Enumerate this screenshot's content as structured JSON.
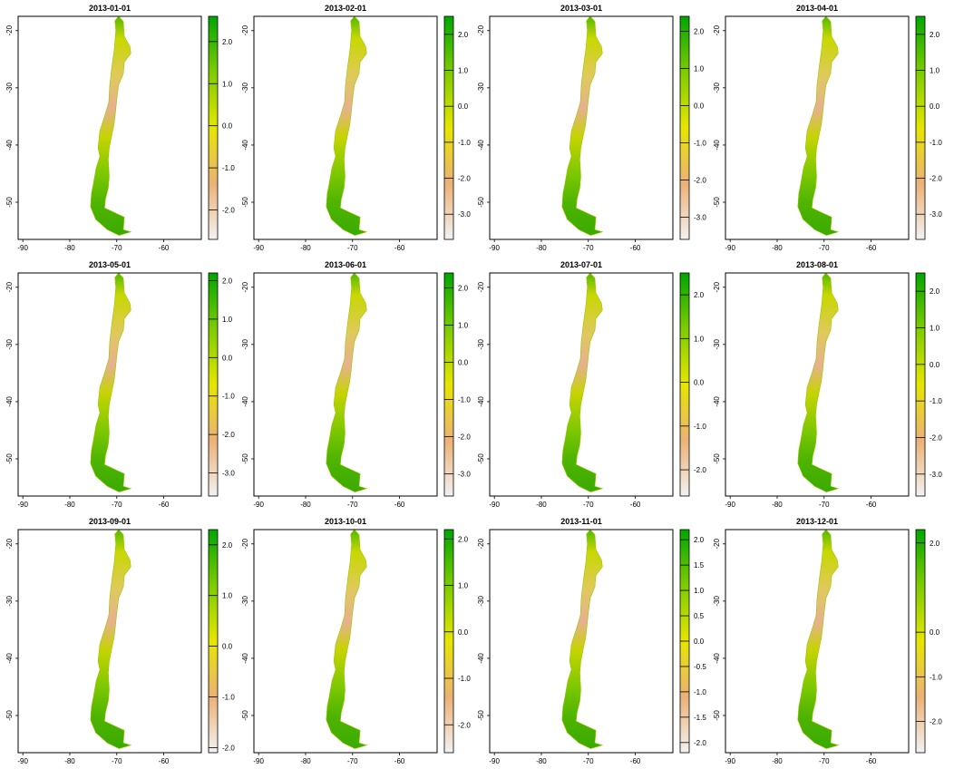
{
  "figure": {
    "layout": "3 rows x 4 columns of raster map panels with colour legends"
  },
  "colors": {
    "ramp": [
      "#f2f2f2",
      "#ecb176",
      "#e6e600",
      "#7dcc00",
      "#00a600"
    ]
  },
  "chart_data": [
    {
      "type": "heatmap",
      "title": "2013-01-01",
      "x_ticks": [
        "-90",
        "-80",
        "-70",
        "-60"
      ],
      "y_ticks": [
        "-20",
        "-30",
        "-40",
        "-50"
      ],
      "xlim": [
        -91,
        -52
      ],
      "ylim": [
        -56.5,
        -17.5
      ],
      "legend": {
        "min": -2.7,
        "max": 2.6,
        "ticks": [
          {
            "v": 2.0,
            "label": "2.0"
          },
          {
            "v": 1.0,
            "label": "1.0"
          },
          {
            "v": 0.0,
            "label": "0.0"
          },
          {
            "v": -1.0,
            "label": "-1.0"
          },
          {
            "v": -2.0,
            "label": "-2.0"
          }
        ]
      }
    },
    {
      "type": "heatmap",
      "title": "2013-02-01",
      "x_ticks": [
        "-90",
        "-80",
        "-70",
        "-60"
      ],
      "y_ticks": [
        "-20",
        "-30",
        "-40",
        "-50"
      ],
      "xlim": [
        -91,
        -52
      ],
      "ylim": [
        -56.5,
        -17.5
      ],
      "legend": {
        "min": -3.7,
        "max": 2.5,
        "ticks": [
          {
            "v": 2.0,
            "label": "2.0"
          },
          {
            "v": 1.0,
            "label": "1.0"
          },
          {
            "v": 0.0,
            "label": "0.0"
          },
          {
            "v": -1.0,
            "label": "-1.0"
          },
          {
            "v": -2.0,
            "label": "-2.0"
          },
          {
            "v": -3.0,
            "label": "-3.0"
          }
        ]
      }
    },
    {
      "type": "heatmap",
      "title": "2013-03-01",
      "x_ticks": [
        "-90",
        "-80",
        "-70",
        "-60"
      ],
      "y_ticks": [
        "-20",
        "-30",
        "-40",
        "-50"
      ],
      "xlim": [
        -91,
        -52
      ],
      "ylim": [
        -56.5,
        -17.5
      ],
      "legend": {
        "min": -3.6,
        "max": 2.4,
        "ticks": [
          {
            "v": 2.0,
            "label": "2.0"
          },
          {
            "v": 1.0,
            "label": "1.0"
          },
          {
            "v": 0.0,
            "label": "0.0"
          },
          {
            "v": -1.0,
            "label": "-1.0"
          },
          {
            "v": -2.0,
            "label": "-2.0"
          },
          {
            "v": -3.0,
            "label": "-3.0"
          }
        ]
      }
    },
    {
      "type": "heatmap",
      "title": "2013-04-01",
      "x_ticks": [
        "-90",
        "-80",
        "-70",
        "-60"
      ],
      "y_ticks": [
        "-20",
        "-30",
        "-40",
        "-50"
      ],
      "xlim": [
        -91,
        -52
      ],
      "ylim": [
        -56.5,
        -17.5
      ],
      "legend": {
        "min": -3.7,
        "max": 2.5,
        "ticks": [
          {
            "v": 2.0,
            "label": "2.0"
          },
          {
            "v": 1.0,
            "label": "1.0"
          },
          {
            "v": 0.0,
            "label": "0.0"
          },
          {
            "v": -1.0,
            "label": "-1.0"
          },
          {
            "v": -2.0,
            "label": "-2.0"
          },
          {
            "v": -3.0,
            "label": "-3.0"
          }
        ]
      }
    },
    {
      "type": "heatmap",
      "title": "2013-05-01",
      "x_ticks": [
        "-90",
        "-80",
        "-70",
        "-60"
      ],
      "y_ticks": [
        "-20",
        "-30",
        "-40",
        "-50"
      ],
      "xlim": [
        -91,
        -52
      ],
      "ylim": [
        -56.5,
        -17.5
      ],
      "legend": {
        "min": -3.6,
        "max": 2.2,
        "ticks": [
          {
            "v": 2.0,
            "label": "2.0"
          },
          {
            "v": 1.0,
            "label": "1.0"
          },
          {
            "v": 0.0,
            "label": "0.0"
          },
          {
            "v": -1.0,
            "label": "-1.0"
          },
          {
            "v": -2.0,
            "label": "-2.0"
          },
          {
            "v": -3.0,
            "label": "-3.0"
          }
        ]
      }
    },
    {
      "type": "heatmap",
      "title": "2013-06-01",
      "x_ticks": [
        "-90",
        "-80",
        "-70",
        "-60"
      ],
      "y_ticks": [
        "-20",
        "-30",
        "-40",
        "-50"
      ],
      "xlim": [
        -91,
        -52
      ],
      "ylim": [
        -56.5,
        -17.5
      ],
      "legend": {
        "min": -3.6,
        "max": 2.4,
        "ticks": [
          {
            "v": 2.0,
            "label": "2.0"
          },
          {
            "v": 1.0,
            "label": "1.0"
          },
          {
            "v": 0.0,
            "label": "0.0"
          },
          {
            "v": -1.0,
            "label": "-1.0"
          },
          {
            "v": -2.0,
            "label": "-2.0"
          },
          {
            "v": -3.0,
            "label": "-3.0"
          }
        ]
      }
    },
    {
      "type": "heatmap",
      "title": "2013-07-01",
      "x_ticks": [
        "-90",
        "-80",
        "-70",
        "-60"
      ],
      "y_ticks": [
        "-20",
        "-30",
        "-40",
        "-50"
      ],
      "xlim": [
        -91,
        -52
      ],
      "ylim": [
        -56.5,
        -17.5
      ],
      "legend": {
        "min": -2.6,
        "max": 2.5,
        "ticks": [
          {
            "v": 2.0,
            "label": "2.0"
          },
          {
            "v": 1.0,
            "label": "1.0"
          },
          {
            "v": 0.0,
            "label": "0.0"
          },
          {
            "v": -1.0,
            "label": "-1.0"
          },
          {
            "v": -2.0,
            "label": "-2.0"
          }
        ]
      }
    },
    {
      "type": "heatmap",
      "title": "2013-08-01",
      "x_ticks": [
        "-90",
        "-80",
        "-70",
        "-60"
      ],
      "y_ticks": [
        "-20",
        "-30",
        "-40",
        "-50"
      ],
      "xlim": [
        -91,
        -52
      ],
      "ylim": [
        -56.5,
        -17.5
      ],
      "legend": {
        "min": -3.6,
        "max": 2.5,
        "ticks": [
          {
            "v": 2.0,
            "label": "2.0"
          },
          {
            "v": 1.0,
            "label": "1.0"
          },
          {
            "v": 0.0,
            "label": "0.0"
          },
          {
            "v": -1.0,
            "label": "-1.0"
          },
          {
            "v": -2.0,
            "label": "-2.0"
          },
          {
            "v": -3.0,
            "label": "-3.0"
          }
        ]
      }
    },
    {
      "type": "heatmap",
      "title": "2013-09-01",
      "x_ticks": [
        "-90",
        "-80",
        "-70",
        "-60"
      ],
      "y_ticks": [
        "-20",
        "-30",
        "-40",
        "-50"
      ],
      "xlim": [
        -91,
        -52
      ],
      "ylim": [
        -56.5,
        -17.5
      ],
      "legend": {
        "min": -2.1,
        "max": 2.3,
        "ticks": [
          {
            "v": 2.0,
            "label": "2.0"
          },
          {
            "v": 1.0,
            "label": "1.0"
          },
          {
            "v": 0.0,
            "label": "0.0"
          },
          {
            "v": -1.0,
            "label": "-1.0"
          },
          {
            "v": -2.0,
            "label": "-2.0"
          }
        ]
      }
    },
    {
      "type": "heatmap",
      "title": "2013-10-01",
      "x_ticks": [
        "-90",
        "-80",
        "-70",
        "-60"
      ],
      "y_ticks": [
        "-20",
        "-30",
        "-40",
        "-50"
      ],
      "xlim": [
        -91,
        -52
      ],
      "ylim": [
        -56.5,
        -17.5
      ],
      "legend": {
        "min": -2.6,
        "max": 2.2,
        "ticks": [
          {
            "v": 2.0,
            "label": "2.0"
          },
          {
            "v": 1.0,
            "label": "1.0"
          },
          {
            "v": 0.0,
            "label": "0.0"
          },
          {
            "v": -1.0,
            "label": "-1.0"
          },
          {
            "v": -2.0,
            "label": "-2.0"
          }
        ]
      }
    },
    {
      "type": "heatmap",
      "title": "2013-11-01",
      "x_ticks": [
        "-90",
        "-80",
        "-70",
        "-60"
      ],
      "y_ticks": [
        "-20",
        "-30",
        "-40",
        "-50"
      ],
      "xlim": [
        -91,
        -52
      ],
      "ylim": [
        -56.5,
        -17.5
      ],
      "legend": {
        "min": -2.2,
        "max": 2.2,
        "ticks": [
          {
            "v": 2.0,
            "label": "2.0"
          },
          {
            "v": 1.5,
            "label": "1.5"
          },
          {
            "v": 1.0,
            "label": "1.0"
          },
          {
            "v": 0.5,
            "label": "0.5"
          },
          {
            "v": 0.0,
            "label": "0.0"
          },
          {
            "v": -0.5,
            "label": "-0.5"
          },
          {
            "v": -1.0,
            "label": "-1.0"
          },
          {
            "v": -1.5,
            "label": "-1.5"
          },
          {
            "v": -2.0,
            "label": "-2.0"
          }
        ]
      }
    },
    {
      "type": "heatmap",
      "title": "2013-12-01",
      "x_ticks": [
        "-90",
        "-80",
        "-70",
        "-60"
      ],
      "y_ticks": [
        "-20",
        "-30",
        "-40",
        "-50"
      ],
      "xlim": [
        -91,
        -52
      ],
      "ylim": [
        -56.5,
        -17.5
      ],
      "legend": {
        "min": -2.7,
        "max": 2.3,
        "ticks": [
          {
            "v": 2.0,
            "label": "2.0"
          },
          {
            "v": 0.0,
            "label": "0.0"
          },
          {
            "v": -1.0,
            "label": "-1.0"
          },
          {
            "v": -2.0,
            "label": "-2.0"
          }
        ]
      }
    }
  ]
}
